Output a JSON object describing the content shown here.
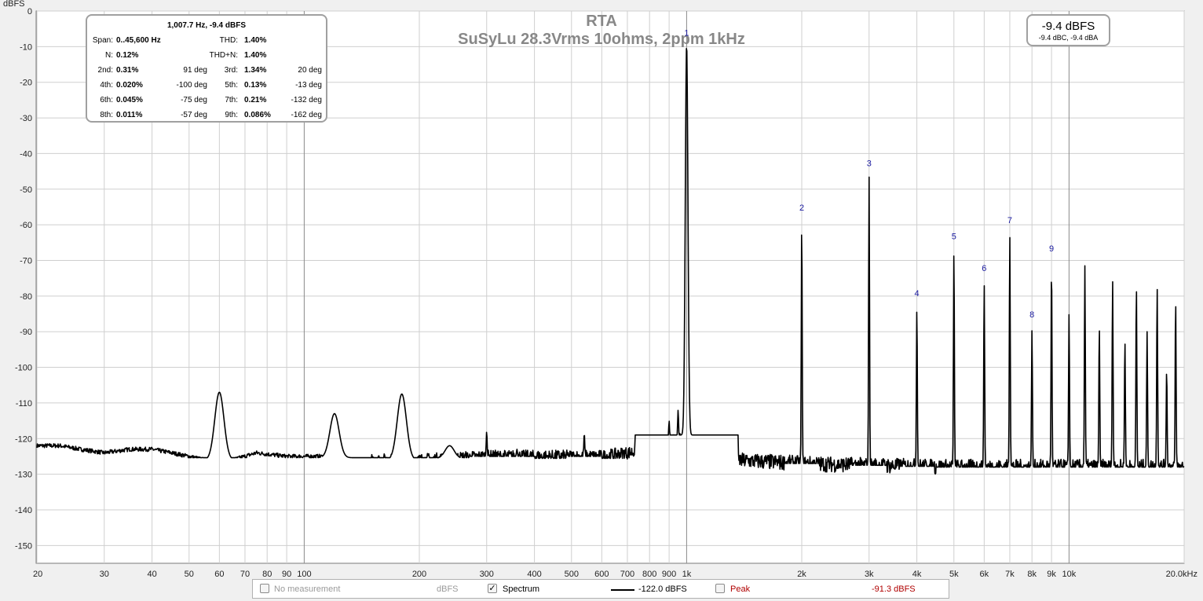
{
  "chart_data": {
    "type": "line",
    "title": "RTA",
    "subtitle": "SuSyLu 28.3Vrms 10ohms, 2ppm 1kHz",
    "ylabel": "dBFS",
    "ylim": [
      -155,
      0
    ],
    "xlim": [
      20,
      20000
    ],
    "x_scale": "log",
    "grid": true,
    "y_ticks": [
      "0",
      "-10",
      "-20",
      "-30",
      "-40",
      "-50",
      "-60",
      "-70",
      "-80",
      "-90",
      "-100",
      "-110",
      "-120",
      "-130",
      "-140",
      "-150"
    ],
    "x_ticks": [
      {
        "value": 20,
        "label": "20"
      },
      {
        "value": 30,
        "label": "30"
      },
      {
        "value": 40,
        "label": "40"
      },
      {
        "value": 50,
        "label": "50"
      },
      {
        "value": 60,
        "label": "60"
      },
      {
        "value": 70,
        "label": "70"
      },
      {
        "value": 80,
        "label": "80"
      },
      {
        "value": 90,
        "label": "90"
      },
      {
        "value": 100,
        "label": "100"
      },
      {
        "value": 200,
        "label": "200"
      },
      {
        "value": 300,
        "label": "300"
      },
      {
        "value": 400,
        "label": "400"
      },
      {
        "value": 500,
        "label": "500"
      },
      {
        "value": 600,
        "label": "600"
      },
      {
        "value": 700,
        "label": "700"
      },
      {
        "value": 800,
        "label": "800"
      },
      {
        "value": 900,
        "label": "900"
      },
      {
        "value": 1000,
        "label": "1k"
      },
      {
        "value": 2000,
        "label": "2k"
      },
      {
        "value": 3000,
        "label": "3k"
      },
      {
        "value": 4000,
        "label": "4k"
      },
      {
        "value": 5000,
        "label": "5k"
      },
      {
        "value": 6000,
        "label": "6k"
      },
      {
        "value": 7000,
        "label": "7k"
      },
      {
        "value": 8000,
        "label": "8k"
      },
      {
        "value": 9000,
        "label": "9k"
      },
      {
        "value": 10000,
        "label": "10k"
      },
      {
        "value": 20000,
        "label": "20.0kHz"
      }
    ],
    "series": [
      {
        "name": "Spectrum",
        "color": "#000000",
        "noise_floor": [
          [
            20,
            -122
          ],
          [
            23,
            -122
          ],
          [
            26,
            -123
          ],
          [
            30,
            -124
          ],
          [
            35,
            -123
          ],
          [
            40,
            -123
          ],
          [
            45,
            -124
          ],
          [
            50,
            -125
          ],
          [
            55,
            -126
          ],
          [
            65,
            -126
          ],
          [
            75,
            -124
          ],
          [
            90,
            -125
          ],
          [
            110,
            -125
          ],
          [
            140,
            -126
          ],
          [
            200,
            -126
          ],
          [
            300,
            -125
          ],
          [
            400,
            -125
          ],
          [
            500,
            -125
          ],
          [
            600,
            -125
          ],
          [
            700,
            -124
          ],
          [
            800,
            -123
          ],
          [
            900,
            -121
          ],
          [
            1000,
            -119
          ],
          [
            1100,
            -123
          ],
          [
            1300,
            -126
          ],
          [
            2000,
            -127
          ],
          [
            3000,
            -127.5
          ],
          [
            5000,
            -128
          ],
          [
            10000,
            -128
          ],
          [
            20000,
            -128
          ]
        ],
        "peaks": [
          [
            60,
            -107
          ],
          [
            120,
            -113
          ],
          [
            180,
            -107.5
          ],
          [
            240,
            -122
          ],
          [
            300,
            -118
          ],
          [
            360,
            -123
          ],
          [
            540,
            -118.5
          ],
          [
            900,
            -115
          ],
          [
            950,
            -112
          ],
          [
            1000,
            -9.4
          ],
          [
            2000,
            -59.5
          ],
          [
            3000,
            -46.5
          ],
          [
            4000,
            -83.5
          ],
          [
            5000,
            -67.5
          ],
          [
            6000,
            -76.5
          ],
          [
            7000,
            -63
          ],
          [
            8000,
            -89.5
          ],
          [
            9000,
            -71
          ],
          [
            10000,
            -85
          ],
          [
            11000,
            -71.5
          ],
          [
            12000,
            -88.5
          ],
          [
            13000,
            -75.5
          ],
          [
            14000,
            -92.5
          ],
          [
            15000,
            -77
          ],
          [
            16000,
            -90
          ],
          [
            17000,
            -77.5
          ],
          [
            18000,
            -100.5
          ],
          [
            19000,
            -81
          ]
        ]
      }
    ],
    "harmonic_markers": [
      {
        "label": "1",
        "x": 1000,
        "y": -7
      },
      {
        "label": "2",
        "x": 2000,
        "y": -56
      },
      {
        "label": "3",
        "x": 3000,
        "y": -43.5
      },
      {
        "label": "4",
        "x": 4000,
        "y": -80
      },
      {
        "label": "5",
        "x": 5000,
        "y": -64
      },
      {
        "label": "6",
        "x": 6000,
        "y": -73
      },
      {
        "label": "7",
        "x": 7000,
        "y": -59.5
      },
      {
        "label": "8",
        "x": 8000,
        "y": -86
      },
      {
        "label": "9",
        "x": 9000,
        "y": -67.5
      }
    ]
  },
  "distortion": {
    "header": "1,007.7 Hz, -9.4 dBFS",
    "rows": [
      [
        {
          "l": "Span:",
          "v": "0..45,600 Hz",
          "d": ""
        },
        {
          "l": "THD:",
          "v": "1.40%",
          "d": ""
        }
      ],
      [
        {
          "l": "N:",
          "v": "0.12%",
          "d": ""
        },
        {
          "l": "THD+N:",
          "v": "1.40%",
          "d": ""
        }
      ],
      [
        {
          "l": "2nd:",
          "v": "0.31%",
          "d": "91 deg"
        },
        {
          "l": "3rd:",
          "v": "1.34%",
          "d": "20 deg"
        }
      ],
      [
        {
          "l": "4th:",
          "v": "0.020%",
          "d": "-100 deg"
        },
        {
          "l": "5th:",
          "v": "0.13%",
          "d": "-13 deg"
        }
      ],
      [
        {
          "l": "6th:",
          "v": "0.045%",
          "d": "-75 deg"
        },
        {
          "l": "7th:",
          "v": "0.21%",
          "d": "-132 deg"
        }
      ],
      [
        {
          "l": "8th:",
          "v": "0.011%",
          "d": "-57 deg"
        },
        {
          "l": "9th:",
          "v": "0.086%",
          "d": "-162 deg"
        }
      ]
    ]
  },
  "level": {
    "main": "-9.4 dBFS",
    "sub": "-9.4 dBC, -9.4 dBA"
  },
  "legend": {
    "no_measurement": "No measurement",
    "no_measurement_unit": "dBFS",
    "spectrum_label": "Spectrum",
    "spectrum_value": "-122.0 dBFS",
    "peak_label": "Peak",
    "peak_value": "-91.3 dBFS",
    "check_mark": "✓",
    "peak_color": "#b00000",
    "disabled_color": "#9a9a9a"
  }
}
